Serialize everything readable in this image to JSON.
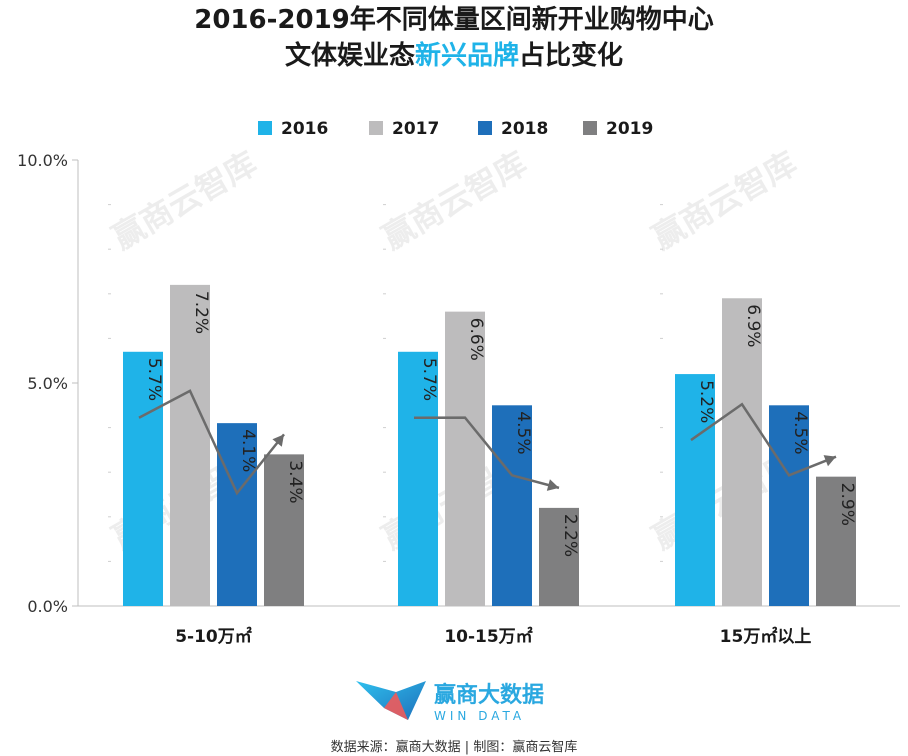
{
  "title": {
    "line1": "2016-2019年不同体量区间新开业购物中心",
    "line2_prefix": "文体娱业态",
    "line2_highlight": "新兴品牌",
    "line2_suffix": "占比变化"
  },
  "watermark_text": "赢商云智库",
  "logo": {
    "cn": "赢商大数据",
    "en": "WIN DATA"
  },
  "source": "数据来源：赢商大数据 | 制图：赢商云智库",
  "colors": {
    "2016": "#1fb3e8",
    "2017": "#bdbcbd",
    "2018": "#1e6fba",
    "2019": "#7f7f80",
    "arrow": "#6b6b6b",
    "highlight": "#1fb3e8"
  },
  "chart_data": {
    "type": "bar",
    "categories": [
      "5-10万㎡",
      "10-15万㎡",
      "15万㎡以上"
    ],
    "series": [
      {
        "name": "2016",
        "values": [
          5.7,
          5.7,
          5.2
        ],
        "labels": [
          "5.7%",
          "5.7%",
          "5.2%"
        ]
      },
      {
        "name": "2017",
        "values": [
          7.2,
          6.6,
          6.9
        ],
        "labels": [
          "7.2%",
          "6.6%",
          "6.9%"
        ]
      },
      {
        "name": "2018",
        "values": [
          4.1,
          4.5,
          4.5
        ],
        "labels": [
          "4.1%",
          "4.5%",
          "4.5%"
        ]
      },
      {
        "name": "2019",
        "values": [
          3.4,
          2.2,
          2.9
        ],
        "labels": [
          "3.4%",
          "2.2%",
          "2.9%"
        ]
      }
    ],
    "ylim": [
      0,
      10
    ],
    "yticks": [
      0,
      5,
      10
    ],
    "ytick_labels": [
      "0.0%",
      "5.0%",
      "10.0%"
    ],
    "legend": "top",
    "grid": false
  }
}
